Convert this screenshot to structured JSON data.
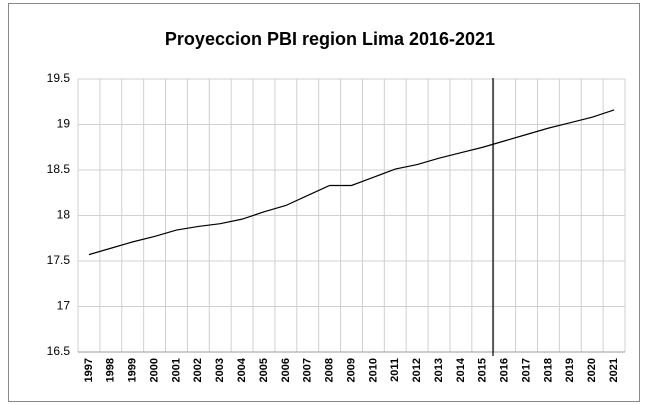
{
  "chart_data": {
    "type": "line",
    "title": "Proyeccion PBI region Lima 2016-2021",
    "categories": [
      "1997",
      "1998",
      "1999",
      "2000",
      "2001",
      "2002",
      "2003",
      "2004",
      "2005",
      "2006",
      "2007",
      "2008",
      "2009",
      "2010",
      "2011",
      "2012",
      "2013",
      "2014",
      "2015",
      "2016",
      "2017",
      "2018",
      "2019",
      "2020",
      "2021"
    ],
    "values": [
      17.57,
      17.64,
      17.71,
      17.77,
      17.84,
      17.88,
      17.91,
      17.96,
      18.04,
      18.11,
      18.22,
      18.33,
      18.33,
      18.42,
      18.51,
      18.56,
      18.63,
      18.69,
      18.75,
      18.82,
      18.89,
      18.96,
      19.02,
      19.08,
      19.16
    ],
    "color": "#000000",
    "ylim": [
      16.5,
      19.5
    ],
    "yticks": [
      16.5,
      17,
      17.5,
      18,
      18.5,
      19,
      19.5
    ],
    "grid": true
  }
}
